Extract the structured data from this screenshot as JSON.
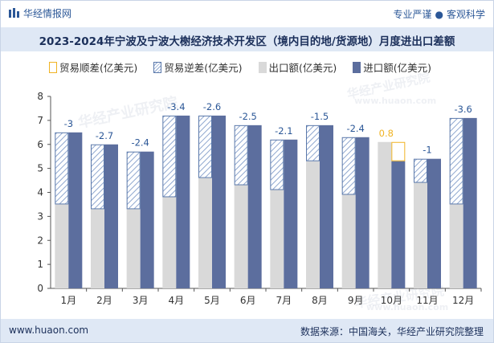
{
  "header": {
    "brand": "华经情报网",
    "tagline_left": "专业严谨",
    "tagline_dot": "●",
    "tagline_right": "客观科学"
  },
  "watermark": {
    "cn": "华经产业研究院",
    "url": "www.huaon.com"
  },
  "legend": {
    "surplus": "贸易顺差(亿美元)",
    "deficit": "贸易逆差(亿美元)",
    "exports": "出口额(亿美元)",
    "imports": "进口额(亿美元)"
  },
  "footer": {
    "url": "www.huaon.com",
    "source": "数据来源：中国海关，华经产业研究院整理"
  },
  "colors": {
    "export": "#d9d9d9",
    "import": "#5c6e9e",
    "deficit_hatch": "#8fa7cf",
    "deficit_border": "#5a78aa",
    "surplus_border": "#f0b323",
    "deficit_label": "#2b5797",
    "surplus_label": "#f0b323"
  },
  "chart_data": {
    "type": "bar",
    "title": "2023-2024年宁波及宁波大榭经济技术开发区（境内目的地/货源地）月度进出口差额",
    "categories": [
      "1月",
      "2月",
      "3月",
      "4月",
      "5月",
      "6月",
      "7月",
      "8月",
      "9月",
      "10月",
      "11月",
      "12月"
    ],
    "ylim": [
      0,
      8
    ],
    "yticks": [
      0,
      1,
      2,
      3,
      4,
      5,
      6,
      7,
      8
    ],
    "series": [
      {
        "name": "出口额(亿美元)",
        "values": [
          3.5,
          3.3,
          3.3,
          3.8,
          4.6,
          4.3,
          4.1,
          5.3,
          3.9,
          6.1,
          4.4,
          3.5
        ]
      },
      {
        "name": "进口额(亿美元)",
        "values": [
          6.5,
          6.0,
          5.7,
          7.2,
          7.2,
          6.8,
          6.2,
          6.8,
          6.3,
          5.3,
          5.4,
          7.1
        ]
      }
    ],
    "balance_labels": [
      "-3",
      "-2.7",
      "-2.4",
      "-3.4",
      "-2.6",
      "-2.5",
      "-2.1",
      "-1.5",
      "-2.4",
      "0.8",
      "-1",
      "-3.6"
    ],
    "grid": false,
    "legend_position": "top"
  }
}
